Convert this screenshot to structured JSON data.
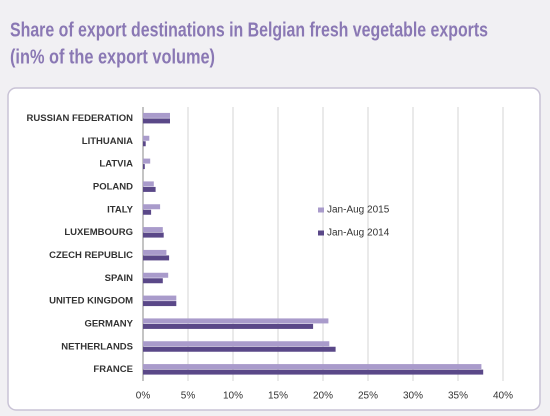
{
  "chart_data": {
    "type": "barh",
    "title": [
      "Share of export destinations in Belgian fresh vegetable exports",
      "(in% of the export volume)"
    ],
    "categories": [
      "RUSSIAN FEDERATION",
      "LITHUANIA",
      "LATVIA",
      "POLAND",
      "ITALY",
      "LUXEMBOURG",
      "CZECH REPUBLIC",
      "SPAIN",
      "UNITED KINGDOM",
      "GERMANY",
      "NETHERLANDS",
      "FRANCE"
    ],
    "series": [
      {
        "name": "Jan-Aug 2015",
        "color": "#a99bcb",
        "values": [
          3.0,
          0.7,
          0.8,
          1.2,
          1.9,
          2.2,
          2.6,
          2.8,
          3.7,
          20.6,
          20.7,
          37.6
        ]
      },
      {
        "name": "Jan-Aug 2014",
        "color": "#5a4888",
        "values": [
          3.0,
          0.3,
          0.2,
          1.4,
          0.9,
          2.3,
          2.9,
          2.2,
          3.7,
          18.9,
          21.4,
          37.8
        ]
      }
    ],
    "xlim": [
      0,
      40
    ],
    "xticks": [
      {
        "value": 0,
        "label": "0%"
      },
      {
        "value": 5,
        "label": "5%"
      },
      {
        "value": 10,
        "label": "10%"
      },
      {
        "value": 15,
        "label": "15%"
      },
      {
        "value": 20,
        "label": "20%"
      },
      {
        "value": 25,
        "label": "25%"
      },
      {
        "value": 30,
        "label": "30%"
      },
      {
        "value": 35,
        "label": "35%"
      },
      {
        "value": 40,
        "label": "40%"
      }
    ],
    "grid": true
  }
}
